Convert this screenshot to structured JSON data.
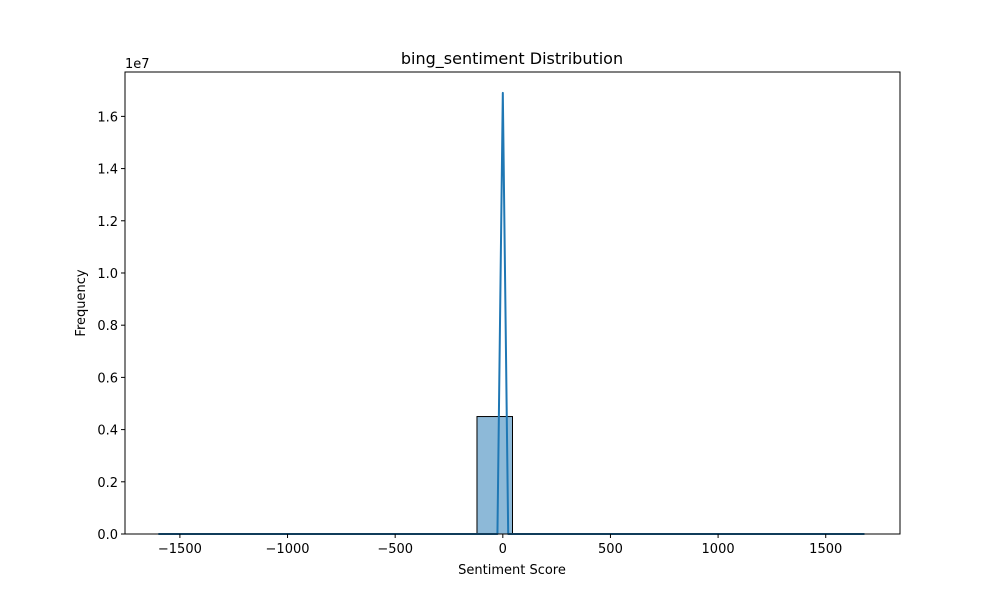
{
  "chart_data": {
    "type": "bar",
    "title": "bing_sentiment Distribution",
    "xlabel": "Sentiment Score",
    "ylabel": "Frequency",
    "y_offset_label": "1e7",
    "xlim": [
      -1755,
      1845
    ],
    "ylim": [
      0,
      17700000
    ],
    "x_ticks": [
      -1500,
      -1000,
      -500,
      0,
      500,
      1000,
      1500
    ],
    "x_tick_labels": [
      "−1500",
      "−1000",
      "−500",
      "0",
      "500",
      "1000",
      "1500"
    ],
    "y_ticks": [
      0,
      2000000,
      4000000,
      6000000,
      8000000,
      10000000,
      12000000,
      14000000,
      16000000
    ],
    "y_tick_labels": [
      "0.0",
      "0.2",
      "0.4",
      "0.6",
      "0.8",
      "1.0",
      "1.2",
      "1.4",
      "1.6"
    ],
    "bars": [
      {
        "x0": -1600,
        "x1": 1680,
        "value": 0
      },
      {
        "x0": -120,
        "x1": 45,
        "value": 4500000
      }
    ],
    "kde_line": {
      "x": [
        -1600,
        -200,
        -25,
        0,
        25,
        200,
        1680
      ],
      "y": [
        0,
        0,
        0,
        16900000,
        0,
        0,
        0
      ]
    },
    "bar_fill": "#8db9d8",
    "bar_edge": "#000000",
    "line_color": "#1f77b4",
    "grid": false
  }
}
